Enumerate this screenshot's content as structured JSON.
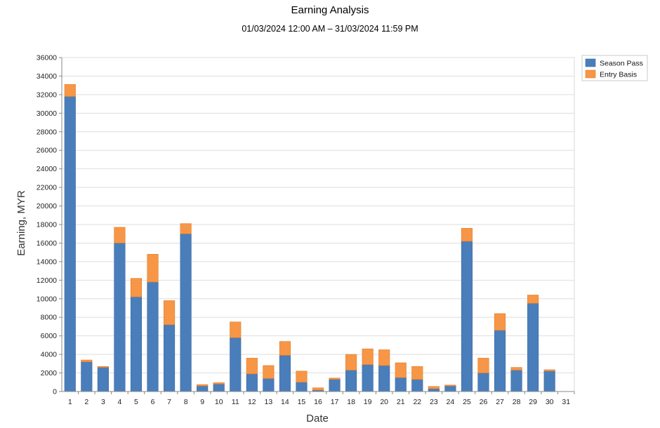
{
  "chart_data": {
    "type": "bar",
    "stacked": true,
    "title": "Earning Analysis",
    "subtitle": "01/03/2024 12:00 AM – 31/03/2024 11:59 PM",
    "xlabel": "Date",
    "ylabel": "Earning, MYR",
    "ylim": [
      0,
      36000
    ],
    "ytick_step": 2000,
    "grid": true,
    "legend_position": "top-right",
    "categories": [
      "1",
      "2",
      "3",
      "4",
      "5",
      "6",
      "7",
      "8",
      "9",
      "10",
      "11",
      "12",
      "13",
      "14",
      "15",
      "16",
      "17",
      "18",
      "19",
      "20",
      "21",
      "22",
      "23",
      "24",
      "25",
      "26",
      "27",
      "28",
      "29",
      "30",
      "31"
    ],
    "series": [
      {
        "name": "Season Pass",
        "color": "#4a7ebb",
        "values": [
          31800,
          3200,
          2600,
          16000,
          10200,
          11800,
          7200,
          17000,
          600,
          800,
          5800,
          1900,
          1400,
          3900,
          1000,
          150,
          1300,
          2300,
          2900,
          2800,
          1500,
          1300,
          300,
          600,
          16200,
          2000,
          6600,
          2300,
          9500,
          2200,
          0
        ]
      },
      {
        "name": "Entry Basis",
        "color": "#f79646",
        "values": [
          1300,
          200,
          100,
          1700,
          2000,
          3000,
          2600,
          1100,
          150,
          150,
          1700,
          1700,
          1400,
          1500,
          1200,
          250,
          150,
          1700,
          1700,
          1700,
          1600,
          1400,
          250,
          100,
          1400,
          1600,
          1800,
          300,
          900,
          150,
          0
        ]
      }
    ]
  }
}
